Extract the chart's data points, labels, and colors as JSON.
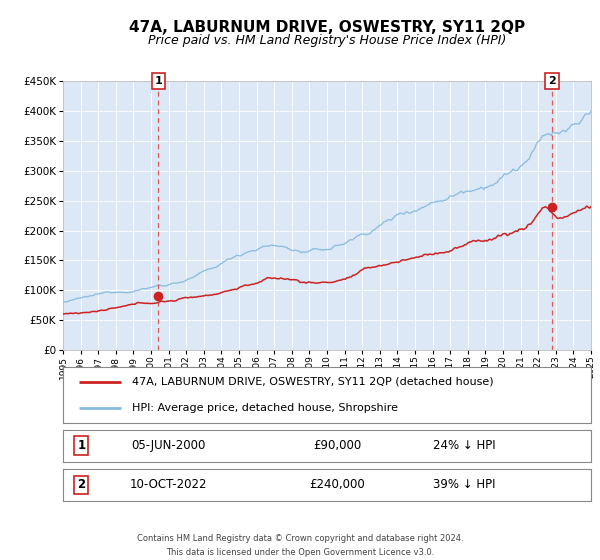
{
  "title": "47A, LABURNUM DRIVE, OSWESTRY, SY11 2QP",
  "subtitle": "Price paid vs. HM Land Registry's House Price Index (HPI)",
  "title_fontsize": 11,
  "subtitle_fontsize": 9,
  "bg_color": "#ffffff",
  "plot_bg_color": "#dce8f5",
  "hpi_color": "#88bbdd",
  "price_color": "#cc2222",
  "marker_color": "#cc2222",
  "dashed_line_color": "#dd4444",
  "sale1_date": 2000.42,
  "sale1_price": 90000,
  "sale2_date": 2022.78,
  "sale2_price": 240000,
  "ylim_min": 0,
  "ylim_max": 450000,
  "xlim_min": 1995,
  "xlim_max": 2025,
  "legend_label1": "47A, LABURNUM DRIVE, OSWESTRY, SY11 2QP (detached house)",
  "legend_label2": "HPI: Average price, detached house, Shropshire",
  "note1_num": "1",
  "note1_date": "05-JUN-2000",
  "note1_price": "£90,000",
  "note1_hpi": "24% ↓ HPI",
  "note2_num": "2",
  "note2_date": "10-OCT-2022",
  "note2_price": "£240,000",
  "note2_hpi": "39% ↓ HPI",
  "footer_line1": "Contains HM Land Registry data © Crown copyright and database right 2024.",
  "footer_line2": "This data is licensed under the Open Government Licence v3.0."
}
